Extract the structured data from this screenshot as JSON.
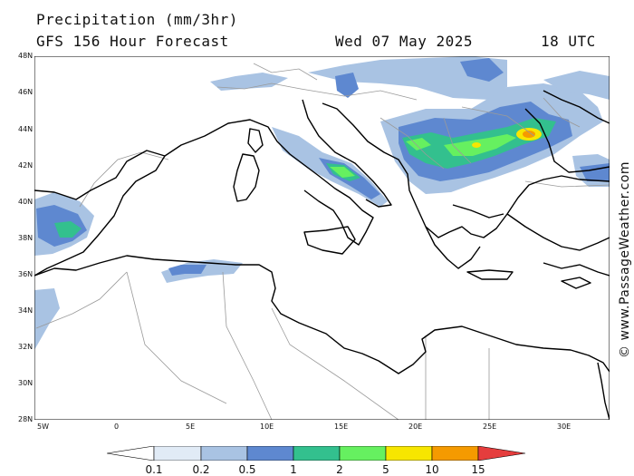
{
  "header": {
    "title": "Precipitation (mm/3hr)",
    "subtitle": "GFS 156 Hour Forecast",
    "date": "Wed 07 May 2025",
    "time": "18 UTC"
  },
  "watermark": "© www.PassageWeather.com",
  "axes": {
    "lat_labels": [
      "48N",
      "46N",
      "44N",
      "42N",
      "40N",
      "38N",
      "36N",
      "34N",
      "32N",
      "30N",
      "28N"
    ],
    "lon_labels": [
      "5W",
      "0",
      "5E",
      "10E",
      "15E",
      "20E",
      "25E",
      "30E"
    ]
  },
  "legend": {
    "labels": [
      "0.1",
      "0.2",
      "0.5",
      "1",
      "2",
      "5",
      "10",
      "15"
    ],
    "colors": [
      "#ffffff",
      "#e1ebf6",
      "#a9c3e3",
      "#5e88d0",
      "#33c08e",
      "#66f060",
      "#f7e600",
      "#f59a00",
      "#e53d3d"
    ]
  },
  "colors": {
    "coastline": "#000000",
    "borders": "#9a9a9a",
    "precip_light": "#a9c3e3",
    "precip_medium": "#5e88d0",
    "precip_heavy": "#33c08e"
  }
}
